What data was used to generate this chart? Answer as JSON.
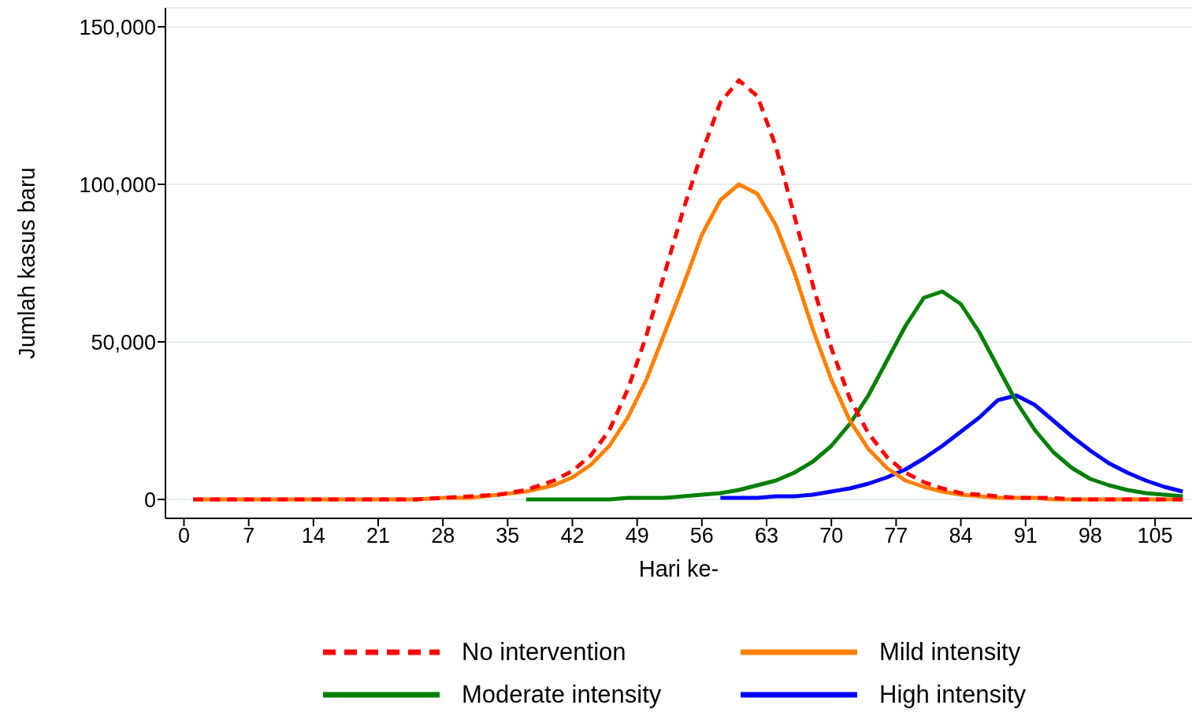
{
  "chart_data": {
    "type": "line",
    "xlabel": "Hari ke-",
    "ylabel": "Jumlah kasus baru",
    "xlim": [
      -2,
      109
    ],
    "xticks": [
      0,
      7,
      14,
      21,
      28,
      35,
      42,
      49,
      56,
      63,
      70,
      77,
      84,
      91,
      98,
      105
    ],
    "ylim": [
      -6000,
      156000
    ],
    "yticks": [
      {
        "value": 0,
        "label": "0"
      },
      {
        "value": 50000,
        "label": "50,000"
      },
      {
        "value": 100000,
        "label": "100,000"
      },
      {
        "value": 150000,
        "label": "150,000"
      }
    ],
    "grid": "y",
    "legend": "bottom",
    "marker": "none",
    "x": [
      1,
      5,
      10,
      15,
      20,
      25,
      28,
      31,
      34,
      37,
      40,
      42,
      44,
      46,
      48,
      50,
      52,
      54,
      56,
      58,
      60,
      62,
      64,
      66,
      68,
      70,
      72,
      74,
      76,
      78,
      80,
      82,
      84,
      86,
      88,
      90,
      92,
      94,
      96,
      98,
      100,
      102,
      104,
      106,
      108
    ],
    "series": [
      {
        "name": "No intervention",
        "color": "#ff0000",
        "line_style": "dashed",
        "values": [
          0,
          0,
          0,
          0,
          0,
          0,
          500,
          1000,
          1500,
          3000,
          6000,
          9000,
          14000,
          22000,
          35000,
          52000,
          72000,
          92000,
          110000,
          126000,
          133000,
          128000,
          112000,
          90000,
          68000,
          48000,
          32000,
          21000,
          13500,
          8500,
          5500,
          3500,
          2000,
          1500,
          1000,
          500,
          500,
          500,
          0,
          0,
          0,
          0,
          0,
          0,
          0
        ]
      },
      {
        "name": "Mild intensity",
        "color": "#ff8000",
        "line_style": "solid",
        "values": [
          0,
          0,
          0,
          0,
          0,
          0,
          500,
          500,
          1500,
          2500,
          4500,
          7000,
          11000,
          17000,
          26000,
          38000,
          53000,
          68000,
          84000,
          95000,
          100000,
          97000,
          87000,
          72000,
          54000,
          38000,
          25000,
          16000,
          10000,
          6000,
          4000,
          2500,
          1500,
          1000,
          500,
          500,
          500,
          0,
          0,
          0,
          0,
          0,
          0,
          0,
          0
        ]
      },
      {
        "name": "Moderate intensity",
        "color": "#008000",
        "line_style": "solid",
        "x": [
          37,
          40,
          42,
          44,
          46,
          48,
          50,
          52,
          54,
          56,
          58,
          60,
          62,
          64,
          66,
          68,
          70,
          72,
          74,
          76,
          78,
          80,
          82,
          84,
          86,
          88,
          90,
          92,
          94,
          96,
          98,
          100,
          102,
          104,
          106,
          108
        ],
        "values": [
          0,
          0,
          0,
          0,
          0,
          500,
          500,
          500,
          1000,
          1500,
          2000,
          3000,
          4500,
          6000,
          8500,
          12000,
          17000,
          24000,
          33000,
          44000,
          55000,
          64000,
          66000,
          62000,
          53000,
          42000,
          31000,
          22000,
          15000,
          10000,
          6500,
          4500,
          3000,
          2000,
          1500,
          1000
        ]
      },
      {
        "name": "High intensity",
        "color": "#0000ff",
        "line_style": "solid",
        "x": [
          58,
          60,
          62,
          64,
          66,
          68,
          70,
          72,
          74,
          76,
          78,
          80,
          82,
          84,
          86,
          88,
          90,
          92,
          94,
          96,
          98,
          100,
          102,
          104,
          106,
          108
        ],
        "values": [
          500,
          500,
          500,
          1000,
          1000,
          1500,
          2500,
          3500,
          5000,
          7000,
          9500,
          13000,
          17000,
          21500,
          26000,
          31500,
          33000,
          30000,
          25000,
          20000,
          15500,
          11500,
          8500,
          6000,
          4000,
          2500
        ]
      }
    ]
  }
}
